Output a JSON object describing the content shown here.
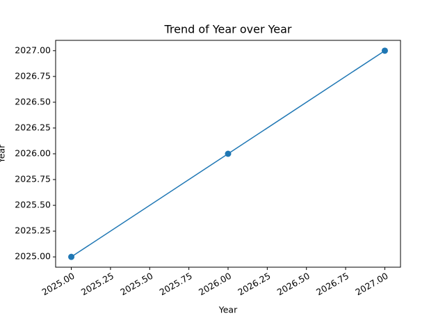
{
  "chart_data": {
    "type": "line",
    "title": "Trend of Year over Year",
    "x_label": "Year",
    "y_label": "Year",
    "x": [
      2025,
      2026,
      2027
    ],
    "values": [
      2025,
      2026,
      2027
    ],
    "color": "#1f77b4",
    "xlim": [
      2024.9,
      2027.1
    ],
    "ylim": [
      2024.9,
      2027.1
    ],
    "xticks": [
      {
        "value": 2025,
        "label": "2025.00"
      },
      {
        "value": 2025.25,
        "label": "2025.25"
      },
      {
        "value": 2025.5,
        "label": "2025.50"
      },
      {
        "value": 2025.75,
        "label": "2025.75"
      },
      {
        "value": 2026,
        "label": "2026.00"
      },
      {
        "value": 2026.25,
        "label": "2026.25"
      },
      {
        "value": 2026.5,
        "label": "2026.50"
      },
      {
        "value": 2026.75,
        "label": "2026.75"
      },
      {
        "value": 2027,
        "label": "2027.00"
      }
    ],
    "yticks": [
      {
        "value": 2025,
        "label": "2025.00"
      },
      {
        "value": 2025.25,
        "label": "2025.25"
      },
      {
        "value": 2025.5,
        "label": "2025.50"
      },
      {
        "value": 2025.75,
        "label": "2025.75"
      },
      {
        "value": 2026,
        "label": "2026.00"
      },
      {
        "value": 2026.25,
        "label": "2026.25"
      },
      {
        "value": 2026.5,
        "label": "2026.50"
      },
      {
        "value": 2026.75,
        "label": "2026.75"
      },
      {
        "value": 2027,
        "label": "2027.00"
      }
    ],
    "grid": false
  }
}
